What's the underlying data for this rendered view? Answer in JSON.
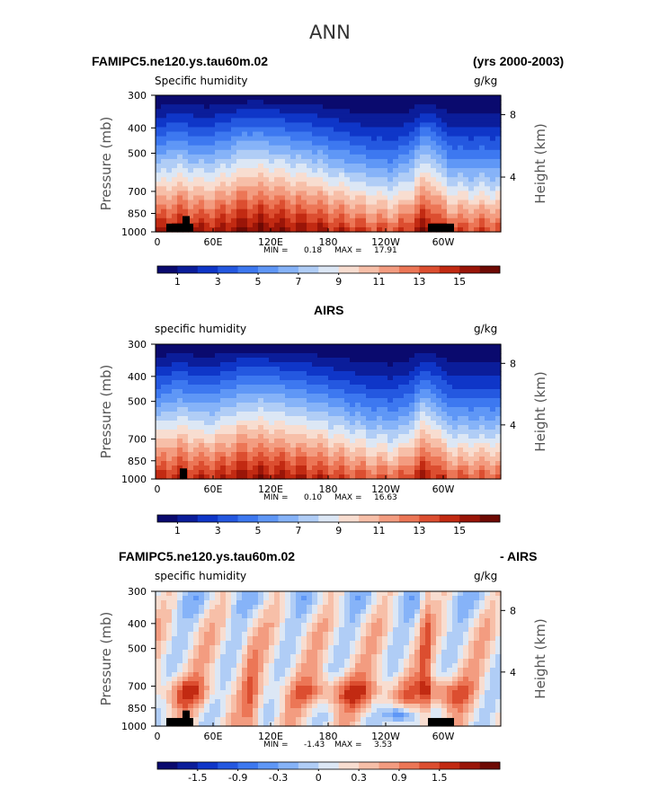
{
  "page": {
    "title": "ANN",
    "case_name": "FAMIPC5.ne120.ys.tau60m.02",
    "years": "(yrs 2000-2003)"
  },
  "chart_data": [
    {
      "type": "heatmap",
      "panel_title": "",
      "subtitle": "Specific humidity",
      "units": "g/kg",
      "xlabel": "",
      "ylabel": "Pressure (mb)",
      "right_axis_label": "Height (km)",
      "x_ticks": [
        "0",
        "60E",
        "120E",
        "180",
        "120W",
        "60W"
      ],
      "y_ticks": [
        "300",
        "400",
        "500",
        "700",
        "850",
        "1000"
      ],
      "y_right_ticks": [
        "8",
        "4"
      ],
      "stats": {
        "min_label": "MIN =",
        "min": "0.18",
        "max_label": "MAX =",
        "max": "17.91"
      },
      "colorbar_ticks": [
        "1",
        "3",
        "5",
        "7",
        "9",
        "11",
        "13",
        "15"
      ],
      "colorbar_levels": [
        "#0a0a6e",
        "#0b1d9a",
        "#0f36c8",
        "#2458e0",
        "#3d78f0",
        "#5f97f6",
        "#86b3f8",
        "#b0cdf6",
        "#dce7f5",
        "#f8ddd0",
        "#f7bfa8",
        "#f39c80",
        "#ec7656",
        "#dc4e30",
        "#c22a12",
        "#9a1508",
        "#6e0a04"
      ],
      "ylim": [
        1000,
        300
      ]
    },
    {
      "type": "heatmap",
      "panel_title": "AIRS",
      "subtitle": "specific humidity",
      "units": "g/kg",
      "ylabel": "Pressure (mb)",
      "right_axis_label": "Height (km)",
      "x_ticks": [
        "0",
        "60E",
        "120E",
        "180",
        "120W",
        "60W"
      ],
      "y_ticks": [
        "300",
        "400",
        "500",
        "700",
        "850",
        "1000"
      ],
      "y_right_ticks": [
        "8",
        "4"
      ],
      "stats": {
        "min_label": "MIN =",
        "min": "0.10",
        "max_label": "MAX =",
        "max": "16.63"
      },
      "colorbar_ticks": [
        "1",
        "3",
        "5",
        "7",
        "9",
        "11",
        "13",
        "15"
      ],
      "colorbar_levels": [
        "#0a0a6e",
        "#0b1d9a",
        "#0f36c8",
        "#2458e0",
        "#3d78f0",
        "#5f97f6",
        "#86b3f8",
        "#b0cdf6",
        "#dce7f5",
        "#f8ddd0",
        "#f7bfa8",
        "#f39c80",
        "#ec7656",
        "#dc4e30",
        "#c22a12",
        "#9a1508",
        "#6e0a04"
      ],
      "ylim": [
        1000,
        300
      ]
    },
    {
      "type": "heatmap",
      "panel_title": "FAMIPC5.ne120.ys.tau60m.02",
      "panel_title_suffix": "- AIRS",
      "subtitle": "specific humidity",
      "units": "g/kg",
      "ylabel": "Pressure (mb)",
      "right_axis_label": "Height (km)",
      "x_ticks": [
        "0",
        "60E",
        "120E",
        "180",
        "120W",
        "60W"
      ],
      "y_ticks": [
        "300",
        "400",
        "500",
        "700",
        "850",
        "1000"
      ],
      "y_right_ticks": [
        "8",
        "4"
      ],
      "stats": {
        "min_label": "MIN =",
        "min": "-1.43",
        "max_label": "MAX =",
        "max": "3.53"
      },
      "colorbar_ticks": [
        "-1.5",
        "-0.9",
        "-0.3",
        "0",
        "0.3",
        "0.9",
        "1.5"
      ],
      "colorbar_levels": [
        "#0a0a6e",
        "#0b1d9a",
        "#0f36c8",
        "#2458e0",
        "#3d78f0",
        "#5f97f6",
        "#86b3f8",
        "#b0cdf6",
        "#dce7f5",
        "#f8ddd0",
        "#f7bfa8",
        "#f39c80",
        "#ec7656",
        "#dc4e30",
        "#c22a12",
        "#9a1508",
        "#6e0a04"
      ],
      "ylim": [
        1000,
        300
      ]
    }
  ]
}
